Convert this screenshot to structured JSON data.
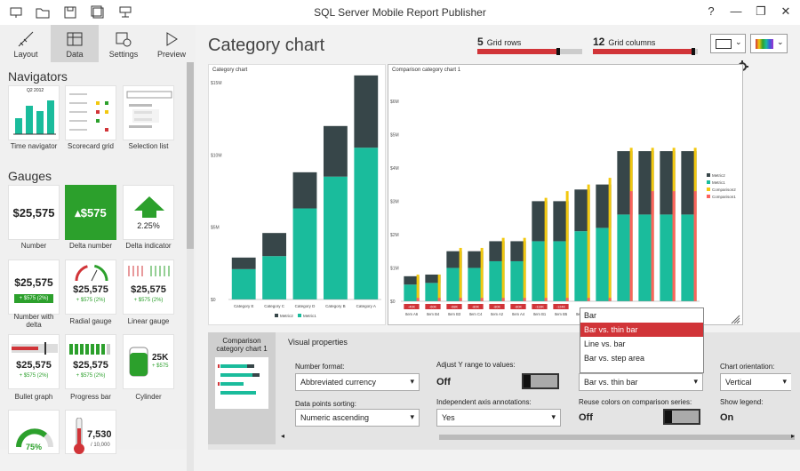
{
  "window": {
    "title": "SQL Server Mobile Report Publisher",
    "help": "?",
    "minimize": "—",
    "restore": "❐",
    "close": "✕"
  },
  "tabs": [
    {
      "label": "Layout"
    },
    {
      "label": "Data"
    },
    {
      "label": "Settings"
    },
    {
      "label": "Preview"
    }
  ],
  "navigators": {
    "heading": "Navigators",
    "items": [
      {
        "label": "Time navigator",
        "caption": "Q2 2012"
      },
      {
        "label": "Scorecard grid"
      },
      {
        "label": "Selection list"
      }
    ]
  },
  "gauges": {
    "heading": "Gauges",
    "items": [
      {
        "label": "Number",
        "value": "$25,575"
      },
      {
        "label": "Delta number",
        "value": "$575"
      },
      {
        "label": "Delta indicator",
        "value": "2.25%"
      },
      {
        "label": "Number with delta",
        "value": "$25,575",
        "delta": "+ $575 (2%)"
      },
      {
        "label": "Radial gauge",
        "value": "$25,575",
        "delta": "+ $575 (2%)"
      },
      {
        "label": "Linear gauge",
        "value": "$25,575",
        "delta": "+ $575 (2%)"
      },
      {
        "label": "Bullet graph",
        "value": "$25,575",
        "delta": "+ $575 (2%)"
      },
      {
        "label": "Progress bar",
        "value": "$25,575",
        "delta": "+ $575 (2%)"
      },
      {
        "label": "Cylinder",
        "value": "25K",
        "delta": "+ $575"
      },
      {
        "label": "",
        "value": "75%"
      },
      {
        "label": "",
        "value": "7,530",
        "delta": "/ 10,000"
      }
    ]
  },
  "page": {
    "title": "Category chart"
  },
  "grid": {
    "rows_value": "5",
    "rows_label": "Grid rows",
    "rows_fraction": 0.75,
    "cols_value": "12",
    "cols_label": "Grid columns",
    "cols_fraction": 0.94
  },
  "colors": {
    "teal": "#1abc9c",
    "dark": "#374649",
    "yellow": "#f2c80f",
    "red": "#fd625e",
    "accent": "#d13438"
  },
  "chart1": {
    "title": "Category chart",
    "ylabels": [
      "$15M",
      "$10M",
      "$5M",
      "$0"
    ],
    "legend": [
      "Metric2",
      "Metric1"
    ]
  },
  "chart2": {
    "title": "Comparison category chart 1",
    "ylabels": [
      "$6M",
      "$5M",
      "$4M",
      "$3M",
      "$2M",
      "$1M",
      "$0"
    ],
    "legend": [
      "Metric2",
      "Metric1",
      "Comparison2",
      "Comparison1"
    ]
  },
  "chart_data": [
    {
      "type": "bar",
      "title": "Category chart",
      "categories": [
        "Category E",
        "Category C",
        "Category D",
        "Category B",
        "Category A"
      ],
      "series": [
        {
          "name": "Metric1",
          "values": [
            2.1,
            3.0,
            6.3,
            8.5,
            10.5
          ]
        },
        {
          "name": "Metric2",
          "values": [
            0.8,
            1.6,
            2.5,
            3.5,
            5.0
          ]
        }
      ],
      "ylim": [
        0,
        15
      ],
      "ylabel": "",
      "xlabel": ""
    },
    {
      "type": "bar",
      "title": "Comparison category chart 1",
      "categories": [
        "Item A6",
        "Item B4",
        "Item B3",
        "Item C4",
        "Item A2",
        "Item A4",
        "Item B1",
        "Item B5",
        "Item C3",
        "Item C5",
        "Item A1",
        "Item A5",
        "Item A3",
        "Item C1"
      ],
      "series": [
        {
          "name": "Metric1",
          "values": [
            0.5,
            0.55,
            1.0,
            1.0,
            1.2,
            1.2,
            1.8,
            1.8,
            2.1,
            2.2,
            2.6,
            2.6,
            2.6,
            2.6
          ]
        },
        {
          "name": "Metric2",
          "values": [
            0.25,
            0.25,
            0.5,
            0.5,
            0.6,
            0.6,
            1.2,
            1.2,
            1.25,
            1.3,
            1.9,
            1.9,
            1.9,
            1.9
          ]
        },
        {
          "name": "Comparison2",
          "values": [
            0.8,
            0.8,
            1.6,
            1.6,
            1.9,
            1.9,
            3.1,
            3.3,
            3.5,
            3.7,
            4.6,
            4.6,
            4.6,
            4.6
          ]
        },
        {
          "name": "Comparison1",
          "values": [
            0.1,
            0.1,
            0.1,
            0.1,
            0.1,
            0.1,
            0.1,
            0.1,
            0.1,
            0.1,
            3.3,
            3.3,
            3.3,
            3.3
          ]
        }
      ],
      "deltas": [
        "-40K",
        "-60K",
        "-68K",
        "-80K",
        "-80K",
        "-80K",
        "-119K",
        "-124K",
        "",
        "",
        "",
        "",
        "",
        ""
      ],
      "ylim": [
        0,
        6.5
      ]
    }
  ],
  "properties": {
    "thumb_label": "Comparison category chart 1",
    "heading": "Visual properties",
    "number_format_label": "Number format:",
    "number_format": "Abbreviated currency",
    "data_sort_label": "Data points sorting:",
    "data_sort": "Numeric ascending",
    "adjust_label": "Adjust Y range to values:",
    "adjust": "Off",
    "annot_label": "Independent axis annotations:",
    "annot": "Yes",
    "comp_label": "",
    "comp": "Bar vs. thin bar",
    "reuse_label": "Reuse colors on comparison series:",
    "reuse": "Off",
    "orient_label": "Chart orientation:",
    "orient": "Vertical",
    "legend_label": "Show legend:",
    "legend": "On"
  },
  "menu": {
    "items": [
      "Bar",
      "Bar vs. thin bar",
      "Line vs. bar",
      "Bar vs. step area"
    ],
    "selected": 1
  }
}
